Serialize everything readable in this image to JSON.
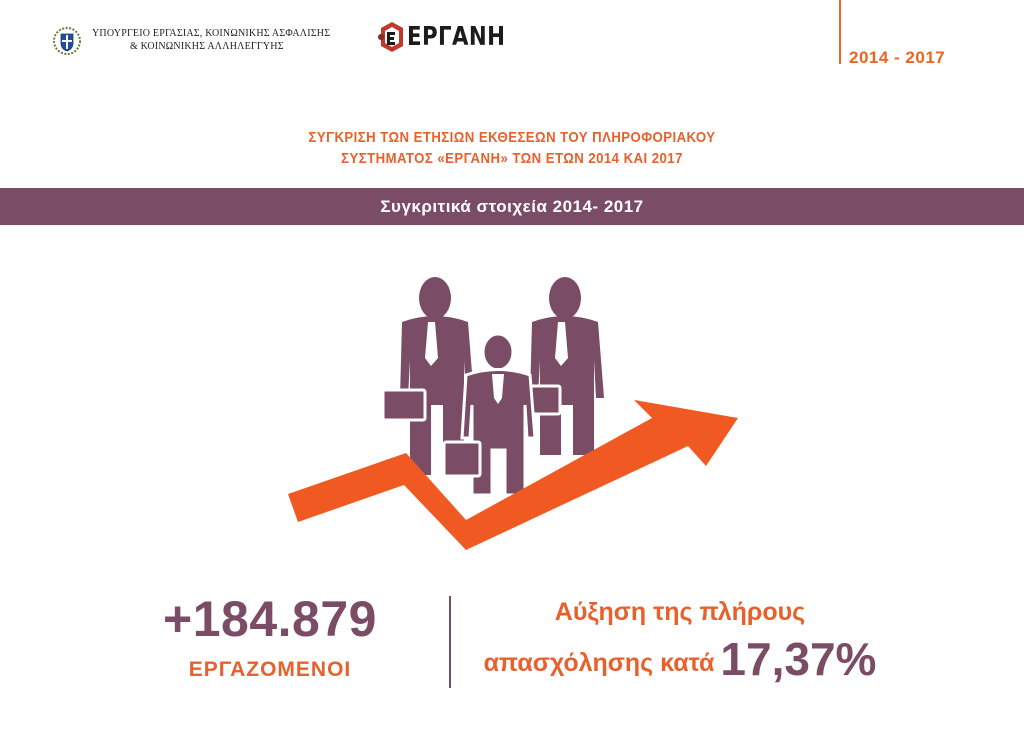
{
  "header": {
    "ministry_line1": "ΥΠΟΥΡΓΕΙΟ ΕΡΓΑΣΙΑΣ, ΚΟΙΝΩΝΙΚΗΣ ΑΣΦΑΛΙΣΗΣ",
    "ministry_line2": "& ΚΟΙΝΩΝΙΚΗΣ ΑΛΛΗΛΕΓΓΥΗΣ",
    "brand_name": "ΕΡΓΑΝΗ",
    "year_range": "2014 - 2017"
  },
  "title": {
    "line1": "ΣΥΓΚΡΙΣΗ ΤΩΝ ΕΤΗΣΙΩΝ ΕΚΘΕΣΕΩΝ ΤΟΥ ΠΛΗΡΟΦΟΡΙΑΚΟΥ",
    "line2": "ΣΥΣΤΗΜΑΤΟΣ «ΕΡΓΑΝΗ» ΤΩΝ ΕΤΩΝ 2014 ΚΑΙ 2017"
  },
  "band": {
    "label": "Συγκριτικά στοιχεία 2014- 2017"
  },
  "stats": {
    "employees_number": "+184.879",
    "employees_label": "ΕΡΓΑΖΟΜΕΝΟΙ",
    "increase_line1": "Αύξηση της πλήρους",
    "increase_line2": "απασχόλησης κατά",
    "increase_percent": "17,37%"
  },
  "colors": {
    "accent_orange": "#e8612c",
    "accent_purple": "#7b4c66",
    "arrow_orange": "#f05a22"
  },
  "icons": {
    "emblem": "greek-coat-of-arms-icon",
    "brand_mark": "ergani-logo-icon",
    "illustration": "business-people-growth-arrow-icon"
  }
}
